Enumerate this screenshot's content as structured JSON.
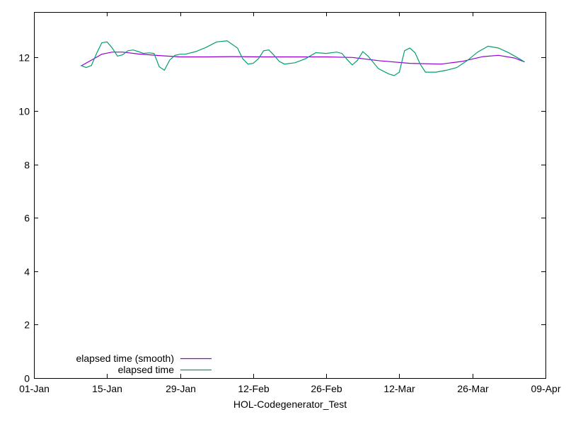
{
  "chart_data": {
    "type": "line",
    "title": "",
    "xlabel": "HOL-Codegenerator_Test",
    "ylabel": "",
    "x_ticks": [
      "01-Jan",
      "15-Jan",
      "29-Jan",
      "12-Feb",
      "26-Feb",
      "12-Mar",
      "26-Mar",
      "09-Apr"
    ],
    "y_ticks": [
      "0",
      "2",
      "4",
      "6",
      "8",
      "10",
      "12"
    ],
    "xlim": [
      "01-Jan",
      "09-Apr"
    ],
    "ylim": [
      0,
      13.7
    ],
    "grid": false,
    "legend_position": "bottom-left",
    "series": [
      {
        "name": "elapsed time (smooth)",
        "color": "#9400d3",
        "x": [
          "10-Jan",
          "12-Jan",
          "14-Jan",
          "16-Jan",
          "18-Jan",
          "21-Jan",
          "25-Jan",
          "29-Jan",
          "03-Feb",
          "08-Feb",
          "14-Feb",
          "20-Feb",
          "26-Feb",
          "03-Mar",
          "08-Mar",
          "14-Mar",
          "20-Mar",
          "24-Mar",
          "28-Mar",
          "31-Mar",
          "03-Apr",
          "05-Apr"
        ],
        "values": [
          11.68,
          11.9,
          12.12,
          12.2,
          12.2,
          12.13,
          12.07,
          12.02,
          12.02,
          12.03,
          12.02,
          12.02,
          12.02,
          12.0,
          11.88,
          11.78,
          11.75,
          11.85,
          12.03,
          12.08,
          11.98,
          11.83
        ]
      },
      {
        "name": "elapsed time",
        "color": "#009e73",
        "x": [
          "10-Jan",
          "11-Jan",
          "12-Jan",
          "13-Jan",
          "14-Jan",
          "15-Jan",
          "16-Jan",
          "17-Jan",
          "18-Jan",
          "19-Jan",
          "20-Jan",
          "21-Jan",
          "22-Jan",
          "23-Jan",
          "24-Jan",
          "25-Jan",
          "26-Jan",
          "27-Jan",
          "28-Jan",
          "29-Jan",
          "30-Jan",
          "01-Feb",
          "03-Feb",
          "05-Feb",
          "07-Feb",
          "09-Feb",
          "10-Feb",
          "11-Feb",
          "12-Feb",
          "13-Feb",
          "14-Feb",
          "15-Feb",
          "16-Feb",
          "17-Feb",
          "18-Feb",
          "20-Feb",
          "22-Feb",
          "24-Feb",
          "26-Feb",
          "28-Feb",
          "01-Mar",
          "02-Mar",
          "03-Mar",
          "04-Mar",
          "05-Mar",
          "06-Mar",
          "08-Mar",
          "10-Mar",
          "11-Mar",
          "12-Mar",
          "13-Mar",
          "14-Mar",
          "15-Mar",
          "16-Mar",
          "17-Mar",
          "19-Mar",
          "21-Mar",
          "23-Mar",
          "25-Mar",
          "27-Mar",
          "29-Mar",
          "31-Mar",
          "02-Apr",
          "04-Apr",
          "05-Apr"
        ],
        "values": [
          11.7,
          11.62,
          11.7,
          12.15,
          12.55,
          12.58,
          12.35,
          12.05,
          12.1,
          12.25,
          12.28,
          12.22,
          12.15,
          12.17,
          12.15,
          11.65,
          11.52,
          11.9,
          12.08,
          12.12,
          12.12,
          12.22,
          12.38,
          12.58,
          12.62,
          12.35,
          11.95,
          11.75,
          11.78,
          11.95,
          12.25,
          12.28,
          12.08,
          11.85,
          11.75,
          11.8,
          11.95,
          12.18,
          12.15,
          12.2,
          12.15,
          11.92,
          11.72,
          11.9,
          12.22,
          12.05,
          11.58,
          11.38,
          11.32,
          11.45,
          12.25,
          12.35,
          12.18,
          11.75,
          11.45,
          11.45,
          11.52,
          11.62,
          11.88,
          12.2,
          12.42,
          12.35,
          12.17,
          11.95,
          11.83
        ]
      }
    ]
  }
}
